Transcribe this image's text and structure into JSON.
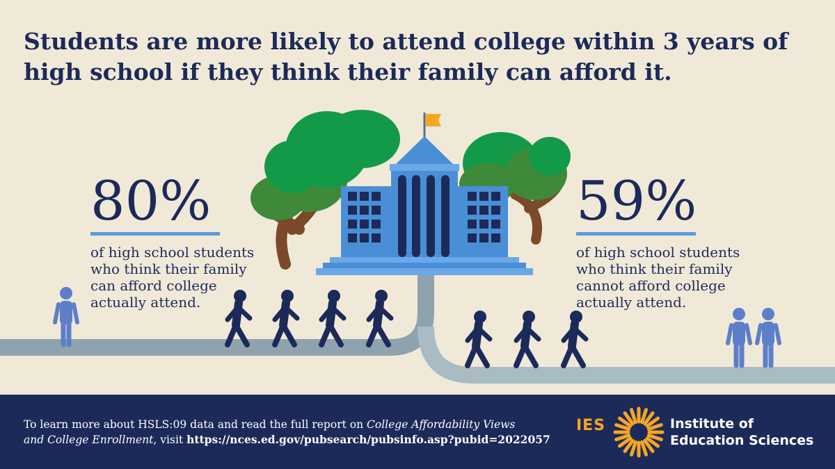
{
  "headline": "Students are more likely to attend college within 3 years of high school if they think their family can afford it.",
  "stat_left": {
    "percent": "80%",
    "lines": [
      "of high school students",
      "who think their family",
      "can afford college",
      "actually attend."
    ]
  },
  "stat_right": {
    "percent": "59%",
    "lines": [
      "of high school students",
      "who think their family",
      "cannot afford college",
      "actually attend."
    ]
  },
  "footer": {
    "text_1": "To learn more about HSLS:09 data and read the full report on ",
    "report_title_1": "College Affordability Views",
    "report_title_2": "and College Enrollment",
    "text_2": ", visit ",
    "url": "https://nces.ed.gov/pubsearch/pubsinfo.asp?pubid=2022057"
  },
  "logo": {
    "mark": "IES",
    "name_line_1": "Institute of",
    "name_line_2": "Education Sciences"
  },
  "icons": [
    "tree-icon",
    "school-building-icon",
    "flag-icon",
    "walking-student-icon",
    "standing-student-icon",
    "sun-burst-logo-icon"
  ],
  "colors": {
    "background": "#f1e9d8",
    "navy": "#1c2a5a",
    "accent_blue": "#5b9bd8",
    "tree_green": "#129a48",
    "path_gray": "#8ea3ae",
    "logo_orange": "#f5a623"
  }
}
